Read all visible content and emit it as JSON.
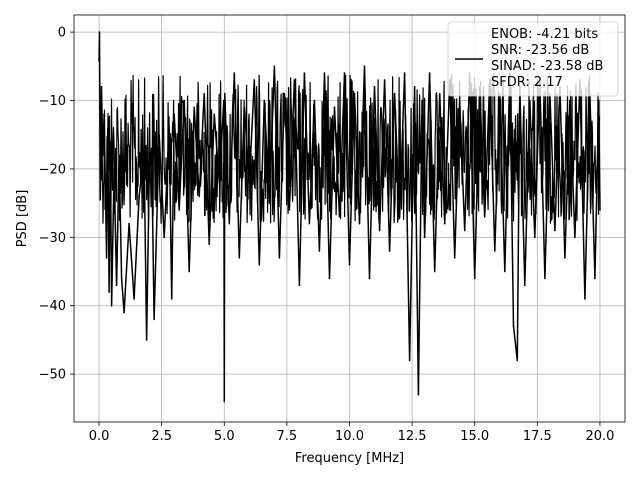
{
  "chart_data": {
    "type": "line",
    "title": "",
    "xlabel": "Frequency [MHz]",
    "ylabel": "PSD [dB]",
    "xlim": [
      -1.0,
      21.0
    ],
    "ylim": [
      -57,
      2.5
    ],
    "xticks": [
      0.0,
      2.5,
      5.0,
      7.5,
      10.0,
      12.5,
      15.0,
      17.5,
      20.0
    ],
    "xtick_labels": [
      "0.0",
      "2.5",
      "5.0",
      "7.5",
      "10.0",
      "12.5",
      "15.0",
      "17.5",
      "20.0"
    ],
    "yticks": [
      0,
      -10,
      -20,
      -30,
      -40,
      -50
    ],
    "ytick_labels": [
      "0",
      "−10",
      "−20",
      "−30",
      "−40",
      "−50"
    ],
    "grid": true,
    "legend_position": "top-right",
    "legend_lines": [
      "ENOB: -4.21 bits",
      "SNR: -23.56 dB",
      "SINAD: -23.58 dB",
      "SFDR: 2.17"
    ],
    "series_color": "#000000",
    "series": [
      {
        "name": "ENOB: -4.21 bits\nSNR: -23.56 dB\nSINAD: -23.58 dB\nSFDR: 2.17",
        "x": [
          0.0,
          0.02,
          0.05,
          0.1,
          0.15,
          0.2,
          0.3,
          0.35,
          0.4,
          0.45,
          0.5,
          0.6,
          0.7,
          0.8,
          0.9,
          1.0,
          1.2,
          1.4,
          1.6,
          1.8,
          1.9,
          2.0,
          2.1,
          2.2,
          2.4,
          2.6,
          2.8,
          2.9,
          3.0,
          3.2,
          3.4,
          3.6,
          3.8,
          4.0,
          4.2,
          4.4,
          4.6,
          4.8,
          4.98,
          5.0,
          5.02,
          5.2,
          5.4,
          5.6,
          5.8,
          6.0,
          6.2,
          6.4,
          6.6,
          6.8,
          7.0,
          7.2,
          7.4,
          7.6,
          7.8,
          8.0,
          8.2,
          8.4,
          8.6,
          8.8,
          9.0,
          9.2,
          9.4,
          9.6,
          9.8,
          10.0,
          10.2,
          10.4,
          10.6,
          10.8,
          11.0,
          11.2,
          11.4,
          11.6,
          11.8,
          12.0,
          12.2,
          12.4,
          12.6,
          12.75,
          12.9,
          13.0,
          13.2,
          13.4,
          13.6,
          13.8,
          14.0,
          14.2,
          14.4,
          14.6,
          14.8,
          15.0,
          15.2,
          15.4,
          15.6,
          15.8,
          16.0,
          16.2,
          16.4,
          16.55,
          16.7,
          16.8,
          17.0,
          17.2,
          17.4,
          17.6,
          17.8,
          18.0,
          18.2,
          18.4,
          18.6,
          18.8,
          19.0,
          19.2,
          19.4,
          19.6,
          19.8,
          19.95,
          20.0
        ],
        "y": [
          -4.2,
          0.0,
          -24.5,
          -8.0,
          -18.0,
          -12.0,
          -33.0,
          -14.0,
          -38.0,
          -16.0,
          -40.0,
          -20.0,
          -37.0,
          -18.0,
          -36.0,
          -41.0,
          -28.0,
          -39.0,
          -24.0,
          -18.0,
          -45.0,
          -22.0,
          -17.0,
          -42.0,
          -15.0,
          -30.0,
          -14.0,
          -39.0,
          -12.0,
          -26.0,
          -10.0,
          -35.0,
          -11.0,
          -24.0,
          -9.0,
          -31.0,
          -12.0,
          -22.0,
          -10.0,
          -54.0,
          -9.0,
          -28.0,
          -6.0,
          -33.0,
          -11.0,
          -22.0,
          -7.0,
          -34.0,
          -10.0,
          -25.0,
          -5.0,
          -33.0,
          -9.0,
          -26.0,
          -7.0,
          -37.0,
          -6.0,
          -28.0,
          -10.0,
          -32.0,
          -6.0,
          -36.0,
          -11.0,
          -27.0,
          -6.0,
          -34.0,
          -9.0,
          -28.0,
          -5.0,
          -36.0,
          -8.0,
          -29.0,
          -7.0,
          -32.0,
          -9.0,
          -27.0,
          -6.0,
          -48.0,
          -8.0,
          -53.0,
          -10.0,
          -30.0,
          -6.0,
          -35.0,
          -9.0,
          -28.0,
          -7.0,
          -33.0,
          -10.0,
          -29.0,
          -6.0,
          -36.0,
          -8.0,
          -27.0,
          -7.0,
          -32.0,
          -9.0,
          -35.0,
          -6.0,
          -43.0,
          -48.0,
          -8.0,
          -37.0,
          -10.0,
          -30.0,
          -7.0,
          -36.0,
          -9.0,
          -29.0,
          -8.0,
          -33.0,
          -10.0,
          -30.0,
          -7.0,
          -39.0,
          -9.0,
          -36.0,
          -10.0,
          -26.0
        ]
      }
    ]
  }
}
